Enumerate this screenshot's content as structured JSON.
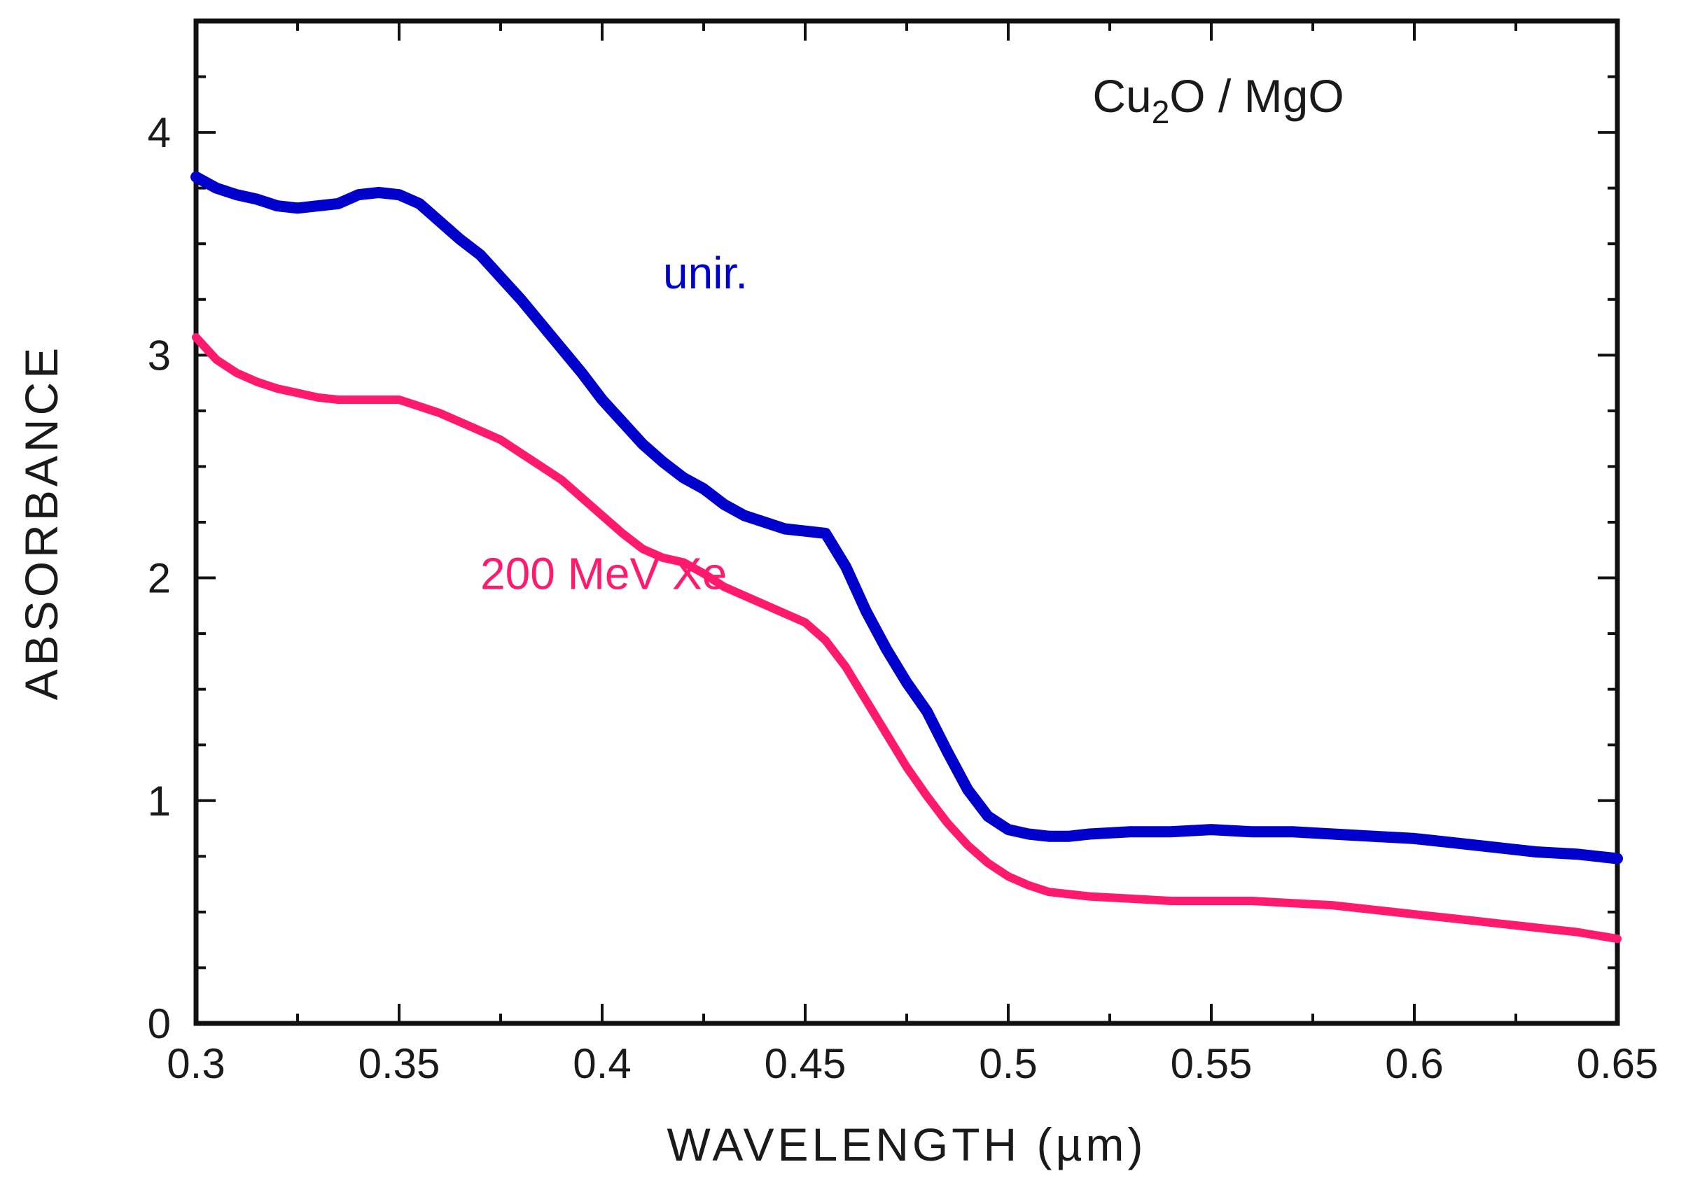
{
  "chart_data": {
    "type": "line",
    "title": "",
    "xlabel": "WAVELENGTH  (µm)",
    "ylabel": "ABSORBANCE",
    "xlim": [
      0.3,
      0.65
    ],
    "ylim": [
      0,
      4.5
    ],
    "xticks": [
      "0.3",
      "0.35",
      "0.4",
      "0.45",
      "0.5",
      "0.55",
      "0.6",
      "0.65"
    ],
    "yticks": [
      "0",
      "1",
      "2",
      "3",
      "4"
    ],
    "grid": false,
    "sample_label": {
      "main": "Cu",
      "sub": "2",
      "rest": "O / MgO"
    },
    "series": [
      {
        "name": "unir.",
        "color": "#0000cc",
        "x": [
          0.3,
          0.305,
          0.31,
          0.315,
          0.32,
          0.325,
          0.33,
          0.335,
          0.34,
          0.345,
          0.35,
          0.355,
          0.36,
          0.365,
          0.37,
          0.375,
          0.38,
          0.385,
          0.39,
          0.395,
          0.4,
          0.405,
          0.41,
          0.415,
          0.42,
          0.425,
          0.43,
          0.435,
          0.44,
          0.445,
          0.45,
          0.455,
          0.46,
          0.465,
          0.47,
          0.475,
          0.48,
          0.485,
          0.49,
          0.495,
          0.5,
          0.505,
          0.51,
          0.515,
          0.52,
          0.53,
          0.54,
          0.55,
          0.56,
          0.57,
          0.58,
          0.59,
          0.6,
          0.61,
          0.62,
          0.63,
          0.64,
          0.65
        ],
        "y": [
          3.8,
          3.75,
          3.72,
          3.7,
          3.67,
          3.66,
          3.67,
          3.68,
          3.72,
          3.73,
          3.72,
          3.68,
          3.6,
          3.52,
          3.45,
          3.35,
          3.25,
          3.14,
          3.03,
          2.92,
          2.8,
          2.7,
          2.6,
          2.52,
          2.45,
          2.4,
          2.33,
          2.28,
          2.25,
          2.22,
          2.21,
          2.2,
          2.05,
          1.85,
          1.68,
          1.53,
          1.4,
          1.22,
          1.05,
          0.93,
          0.87,
          0.85,
          0.84,
          0.84,
          0.85,
          0.86,
          0.86,
          0.87,
          0.86,
          0.86,
          0.85,
          0.84,
          0.83,
          0.81,
          0.79,
          0.77,
          0.76,
          0.74
        ]
      },
      {
        "name": "200 MeV Xe",
        "color": "#ff1a6e",
        "x": [
          0.3,
          0.305,
          0.31,
          0.315,
          0.32,
          0.325,
          0.33,
          0.335,
          0.34,
          0.345,
          0.35,
          0.355,
          0.36,
          0.365,
          0.37,
          0.375,
          0.38,
          0.385,
          0.39,
          0.395,
          0.4,
          0.405,
          0.41,
          0.415,
          0.42,
          0.425,
          0.43,
          0.435,
          0.44,
          0.445,
          0.45,
          0.455,
          0.46,
          0.465,
          0.47,
          0.475,
          0.48,
          0.485,
          0.49,
          0.495,
          0.5,
          0.505,
          0.51,
          0.515,
          0.52,
          0.53,
          0.54,
          0.55,
          0.56,
          0.57,
          0.58,
          0.59,
          0.6,
          0.61,
          0.62,
          0.63,
          0.64,
          0.65
        ],
        "y": [
          3.08,
          2.98,
          2.92,
          2.88,
          2.85,
          2.83,
          2.81,
          2.8,
          2.8,
          2.8,
          2.8,
          2.77,
          2.74,
          2.7,
          2.66,
          2.62,
          2.56,
          2.5,
          2.44,
          2.36,
          2.28,
          2.2,
          2.13,
          2.09,
          2.07,
          2.02,
          1.96,
          1.92,
          1.88,
          1.84,
          1.8,
          1.72,
          1.6,
          1.45,
          1.3,
          1.15,
          1.02,
          0.9,
          0.8,
          0.72,
          0.66,
          0.62,
          0.59,
          0.58,
          0.57,
          0.56,
          0.55,
          0.55,
          0.55,
          0.54,
          0.53,
          0.51,
          0.49,
          0.47,
          0.45,
          0.43,
          0.41,
          0.38
        ]
      }
    ],
    "annotations": [
      {
        "text": "unir.",
        "series": 0,
        "x": 0.415,
        "y": 3.3
      },
      {
        "text": "200 MeV Xe",
        "series": 1,
        "x": 0.37,
        "y": 1.95
      }
    ]
  }
}
